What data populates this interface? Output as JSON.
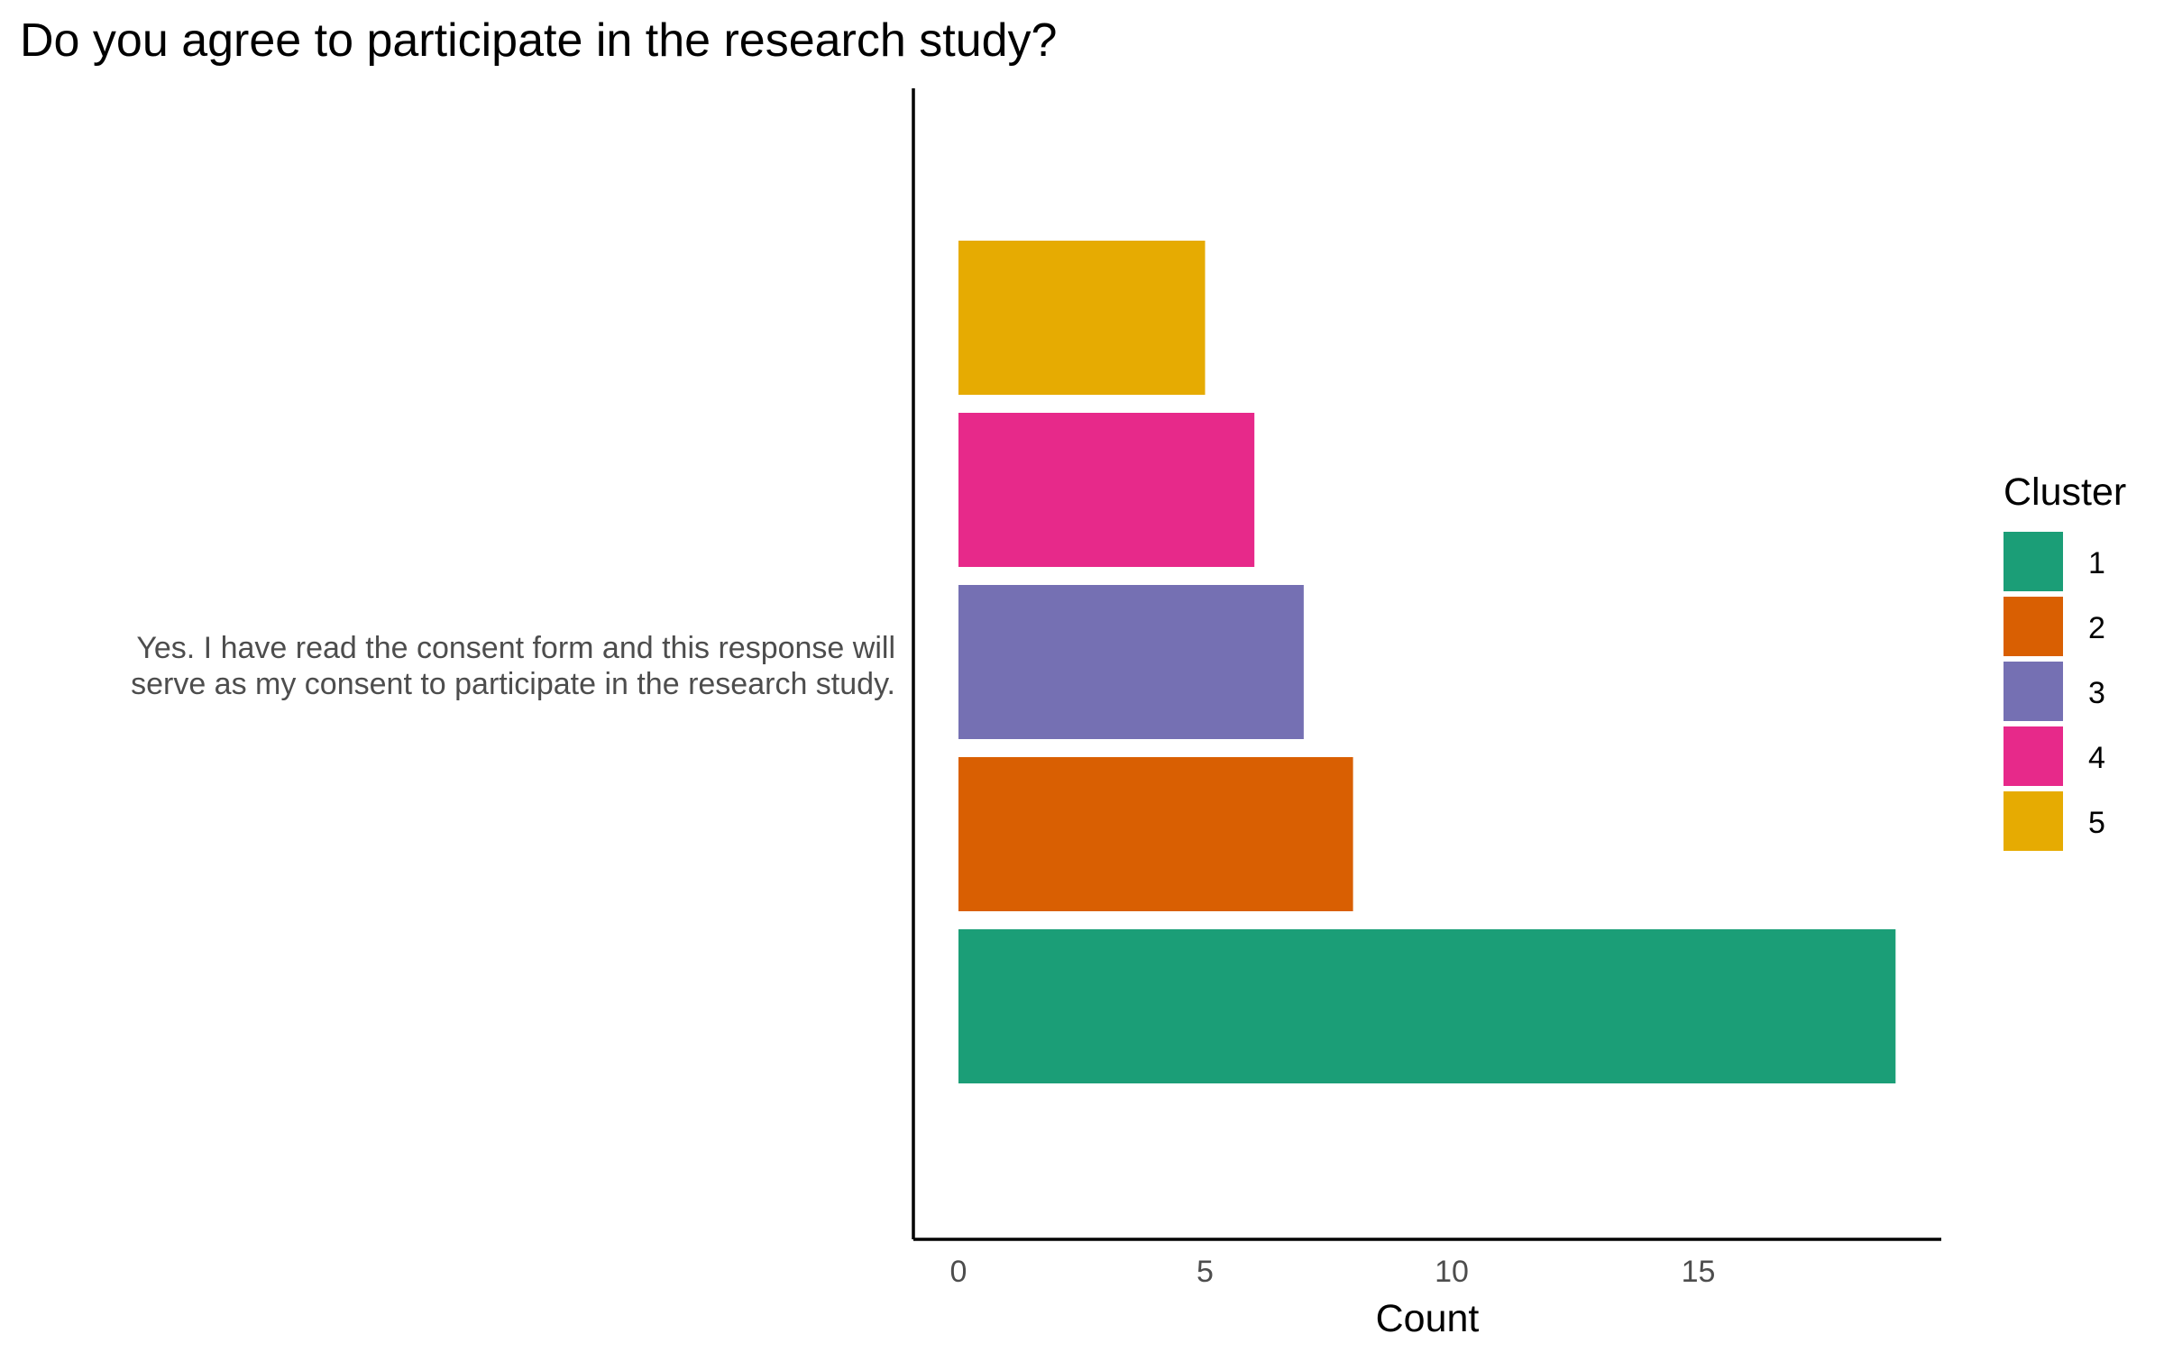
{
  "chart_data": {
    "type": "bar",
    "orientation": "horizontal",
    "stacking": "dodge",
    "title": "Do you agree to participate in the research study?",
    "xlabel": "Count",
    "ylabel": "",
    "categories": [
      "Yes. I have read the consent form and this response will serve as my consent to participate in the research study."
    ],
    "category_label_lines": [
      "Yes. I have read the consent form and this response will",
      "serve as my consent to participate in the research study."
    ],
    "series": [
      {
        "name": "1",
        "values": [
          19
        ],
        "color": "#1B9E77"
      },
      {
        "name": "2",
        "values": [
          8
        ],
        "color": "#D95F02"
      },
      {
        "name": "3",
        "values": [
          7
        ],
        "color": "#7570B3"
      },
      {
        "name": "4",
        "values": [
          6
        ],
        "color": "#E7298A"
      },
      {
        "name": "5",
        "values": [
          5
        ],
        "color": "#E6AB02"
      }
    ],
    "xlim": [
      0,
      19
    ],
    "xticks": [
      0,
      5,
      10,
      15
    ],
    "grid": false,
    "legend": {
      "title": "Cluster",
      "position": "right"
    }
  }
}
